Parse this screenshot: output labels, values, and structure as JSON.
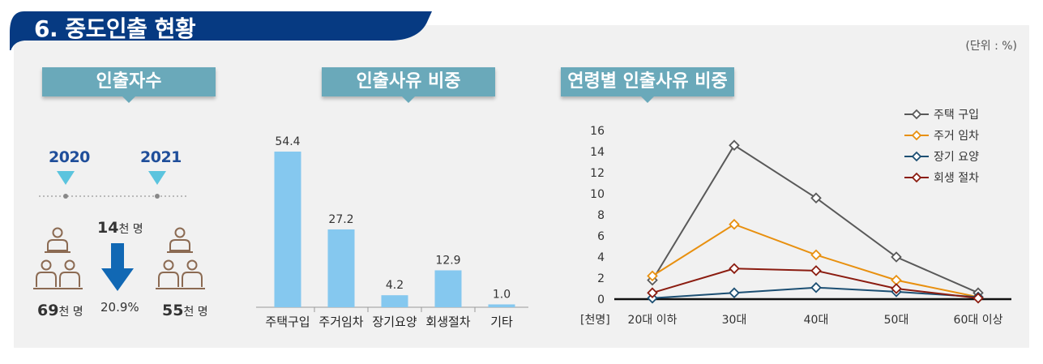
{
  "header": {
    "title": "6. 중도인출 현황",
    "unit": "(단위 : %)"
  },
  "colors": {
    "navy": "#063a82",
    "banner": "#6aa9ba",
    "bar": "#85c8ef",
    "arrow": "#1168b4",
    "triangle": "#5bc4de",
    "person": "#8b6a52"
  },
  "withdrawers": {
    "banner": "인출자수",
    "year_2020": "2020",
    "year_2021": "2021",
    "count_2020_num": "69",
    "count_2020_unit": "천 명",
    "count_2021_num": "55",
    "count_2021_unit": "천 명",
    "decrease_num": "14",
    "decrease_unit": "천 명",
    "decrease_rate": "20.9%"
  },
  "chart_data": [
    {
      "type": "bar",
      "title": "인출사유 비중",
      "categories": [
        "주택구입",
        "주거임차",
        "장기요양",
        "회생절차",
        "기타"
      ],
      "values": [
        54.4,
        27.2,
        4.2,
        12.9,
        1.0
      ],
      "value_labels": [
        "54.4",
        "27.2",
        "4.2",
        "12.9",
        "1.0"
      ],
      "ylim": [
        0,
        60
      ]
    },
    {
      "type": "line",
      "title": "연령별 인출사유 비중",
      "ylabel": "[천명]",
      "categories": [
        "20대 이하",
        "30대",
        "40대",
        "50대",
        "60대 이상"
      ],
      "yticks": [
        "0",
        "2",
        "4",
        "6",
        "8",
        "10",
        "12",
        "14",
        "16"
      ],
      "ylim": [
        0,
        16
      ],
      "legend_position": "top-right",
      "series": [
        {
          "name": "주택 구입",
          "color": "#595959",
          "values": [
            1.8,
            14.6,
            9.6,
            4.0,
            0.6
          ]
        },
        {
          "name": "주거 임차",
          "color": "#e8900f",
          "values": [
            2.2,
            7.1,
            4.2,
            1.8,
            0.2
          ]
        },
        {
          "name": "장기 요양",
          "color": "#1c4f73",
          "values": [
            0.1,
            0.6,
            1.1,
            0.7,
            0.2
          ]
        },
        {
          "name": "회생 절차",
          "color": "#8b1c10",
          "values": [
            0.6,
            2.9,
            2.7,
            1.0,
            0.1
          ]
        }
      ]
    }
  ]
}
